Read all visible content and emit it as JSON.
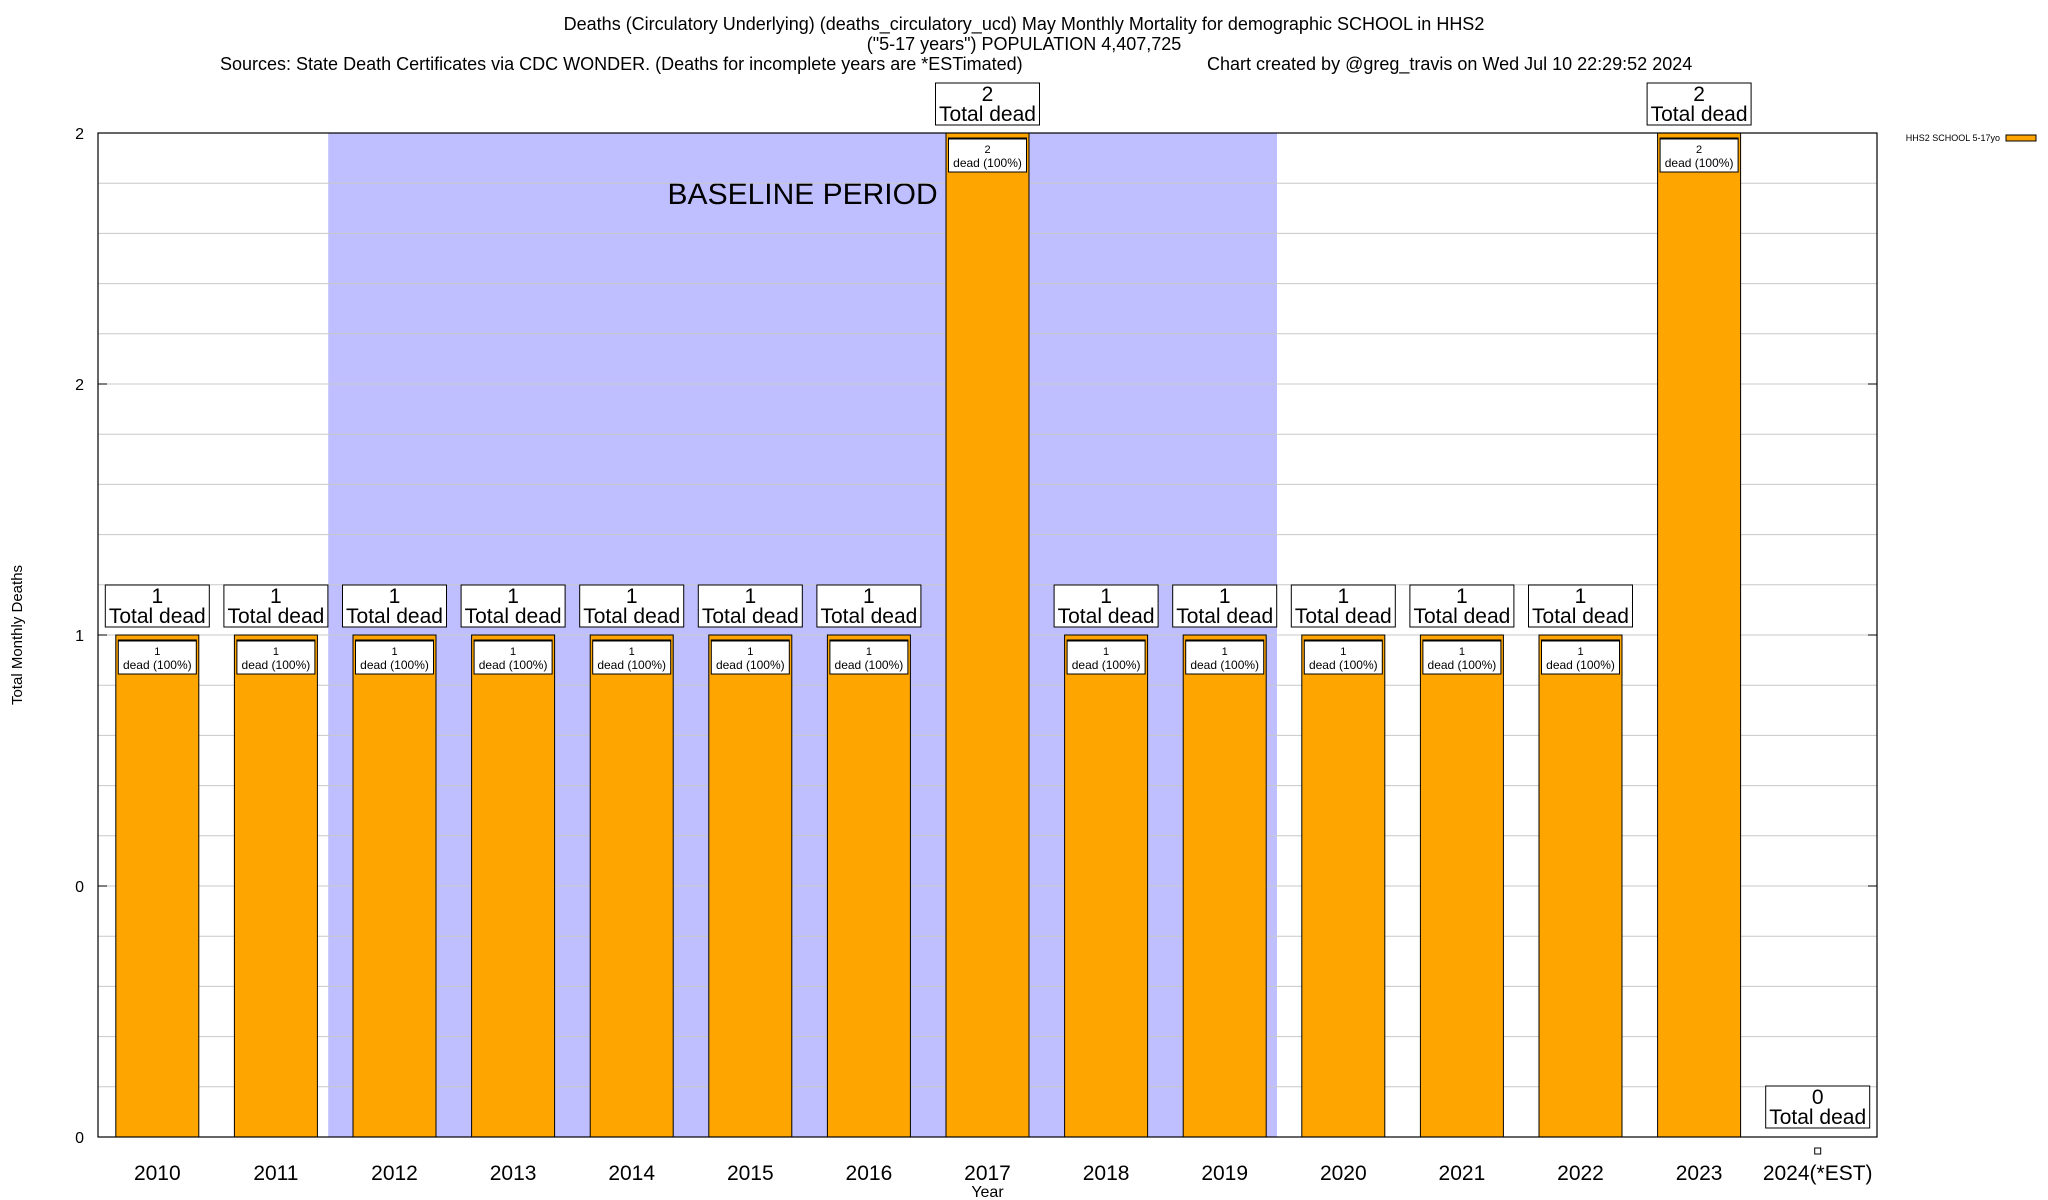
{
  "chart_data": {
    "type": "bar",
    "title": "Deaths (Circulatory Underlying) (deaths_circulatory_ucd) May Monthly Mortality for demographic SCHOOL in HHS2",
    "subtitle": "(\"5-17 years\") POPULATION 4,407,725",
    "sources": "Sources: State Death Certificates via CDC WONDER. (Deaths for incomplete years are *ESTimated)",
    "credit": "Chart created by @greg_travis on Wed Jul 10 22:29:52 2024",
    "xlabel": "Year",
    "ylabel": "Total Monthly Deaths",
    "ylim": [
      0,
      2
    ],
    "y_tick_labels": [
      "0",
      "0",
      "1",
      "2",
      "2"
    ],
    "grid": true,
    "legend_position": "top-right",
    "baseline_label": "BASELINE PERIOD",
    "baseline_range": [
      "2012",
      "2019"
    ],
    "categories": [
      "2010",
      "2011",
      "2012",
      "2013",
      "2014",
      "2015",
      "2016",
      "2017",
      "2018",
      "2019",
      "2020",
      "2021",
      "2022",
      "2023",
      "2024(*EST)"
    ],
    "series": [
      {
        "name": "HHS2 SCHOOL 5-17yo",
        "color": "#FFA500",
        "values": [
          1,
          1,
          1,
          1,
          1,
          1,
          1,
          2,
          1,
          1,
          1,
          1,
          1,
          2,
          0
        ]
      }
    ],
    "total_labels": [
      {
        "count": "1",
        "text": "Total dead"
      },
      {
        "count": "1",
        "text": "Total dead"
      },
      {
        "count": "1",
        "text": "Total dead"
      },
      {
        "count": "1",
        "text": "Total dead"
      },
      {
        "count": "1",
        "text": "Total dead"
      },
      {
        "count": "1",
        "text": "Total dead"
      },
      {
        "count": "1",
        "text": "Total dead"
      },
      {
        "count": "2",
        "text": "Total dead"
      },
      {
        "count": "1",
        "text": "Total dead"
      },
      {
        "count": "1",
        "text": "Total dead"
      },
      {
        "count": "1",
        "text": "Total dead"
      },
      {
        "count": "1",
        "text": "Total dead"
      },
      {
        "count": "1",
        "text": "Total dead"
      },
      {
        "count": "2",
        "text": "Total dead"
      },
      {
        "count": "0",
        "text": "Total dead"
      }
    ],
    "segment_labels": [
      {
        "count": "1",
        "text": "dead (100%)"
      },
      {
        "count": "1",
        "text": "dead (100%)"
      },
      {
        "count": "1",
        "text": "dead (100%)"
      },
      {
        "count": "1",
        "text": "dead (100%)"
      },
      {
        "count": "1",
        "text": "dead (100%)"
      },
      {
        "count": "1",
        "text": "dead (100%)"
      },
      {
        "count": "1",
        "text": "dead (100%)"
      },
      {
        "count": "2",
        "text": "dead (100%)"
      },
      {
        "count": "1",
        "text": "dead (100%)"
      },
      {
        "count": "1",
        "text": "dead (100%)"
      },
      {
        "count": "1",
        "text": "dead (100%)"
      },
      {
        "count": "1",
        "text": "dead (100%)"
      },
      {
        "count": "1",
        "text": "dead (100%)"
      },
      {
        "count": "2",
        "text": "dead (100%)"
      },
      null
    ]
  }
}
